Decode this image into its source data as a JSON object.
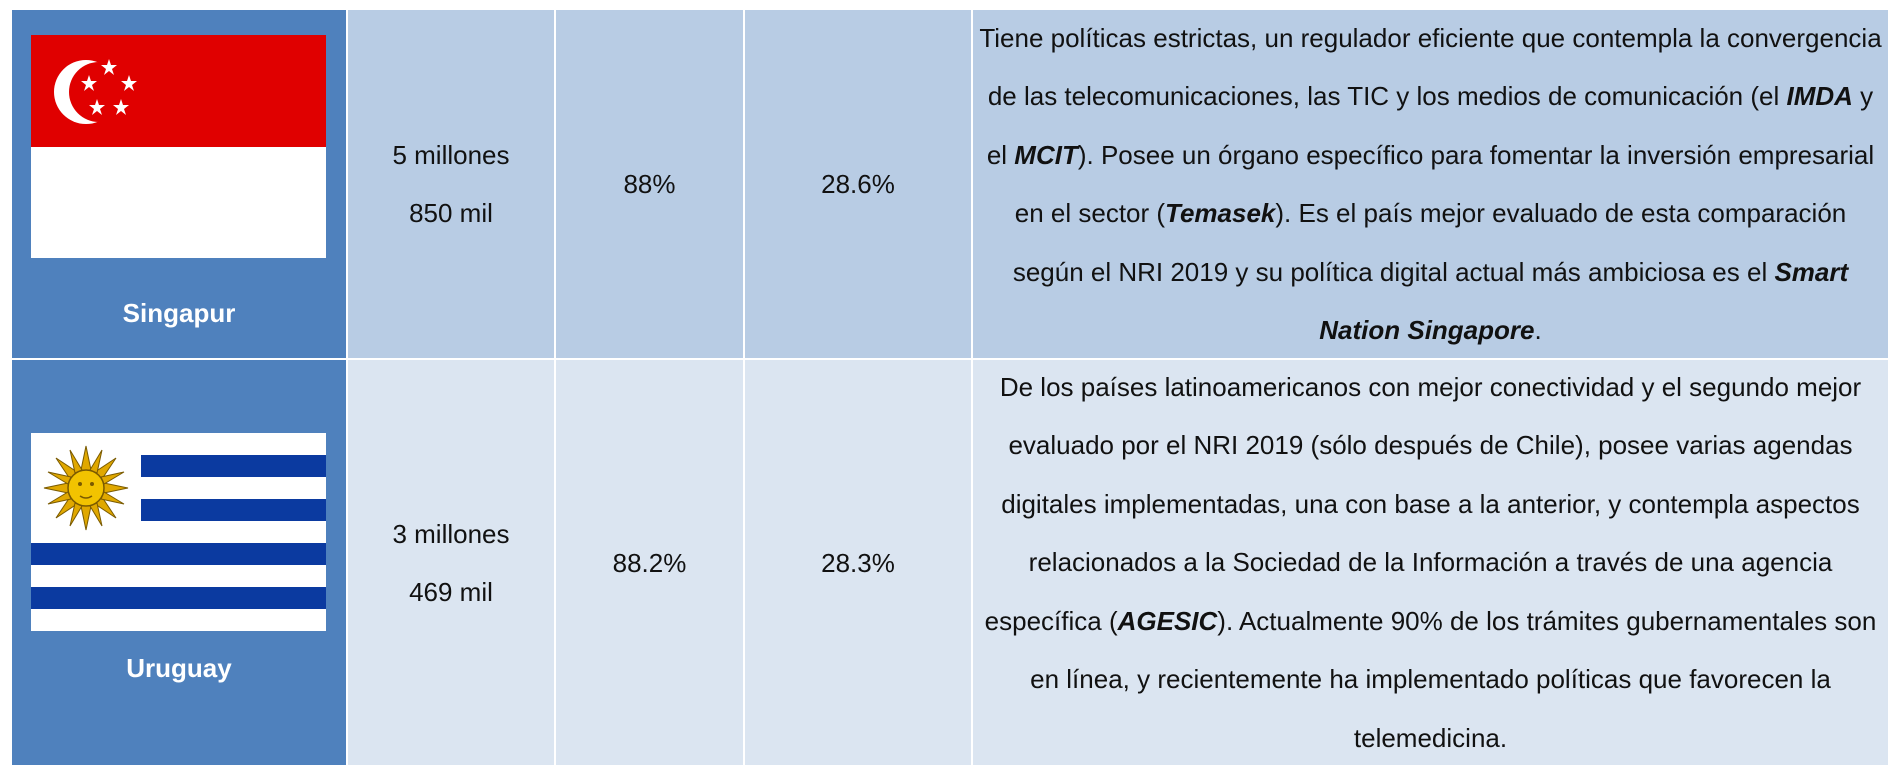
{
  "table": {
    "rows": [
      {
        "country": "Singapur",
        "population": [
          "5 millones",
          "850 mil"
        ],
        "col2": "88%",
        "col3": "28.6%",
        "description": [
          {
            "text": "Tiene políticas estrictas, un regulador eficiente que contempla la convergencia de las telecomunicaciones, las TIC y los medios de comunicación (el "
          },
          {
            "text": "IMDA",
            "emphasis": true
          },
          {
            "text": " y el "
          },
          {
            "text": "MCIT",
            "emphasis": true
          },
          {
            "text": "). Posee un órgano específico para fomentar la inversión empresarial en el sector ("
          },
          {
            "text": "Temasek",
            "emphasis": true
          },
          {
            "text": "). Es el país mejor evaluado de esta comparación según el NRI 2019 y su política digital actual más ambiciosa es el "
          },
          {
            "text": "Smart Nation Singapore",
            "emphasis": true
          },
          {
            "text": "."
          }
        ]
      },
      {
        "country": "Uruguay",
        "population": [
          "3 millones",
          "469 mil"
        ],
        "col2": "88.2%",
        "col3": "28.3%",
        "description": [
          {
            "text": "De los países latinoamericanos con mejor conectividad y el segundo mejor evaluado por el NRI 2019 (sólo después de Chile), posee varias agendas digitales implementadas, una con base a la anterior, y contempla aspectos relacionados a la Sociedad de la Información a través de una agencia específica ("
          },
          {
            "text": "AGESIC",
            "emphasis": true
          },
          {
            "text": "). Actualmente 90% de los trámites gubernamentales son en línea, y recientemente ha implementado políticas que favorecen la telemedicina."
          }
        ]
      }
    ]
  }
}
